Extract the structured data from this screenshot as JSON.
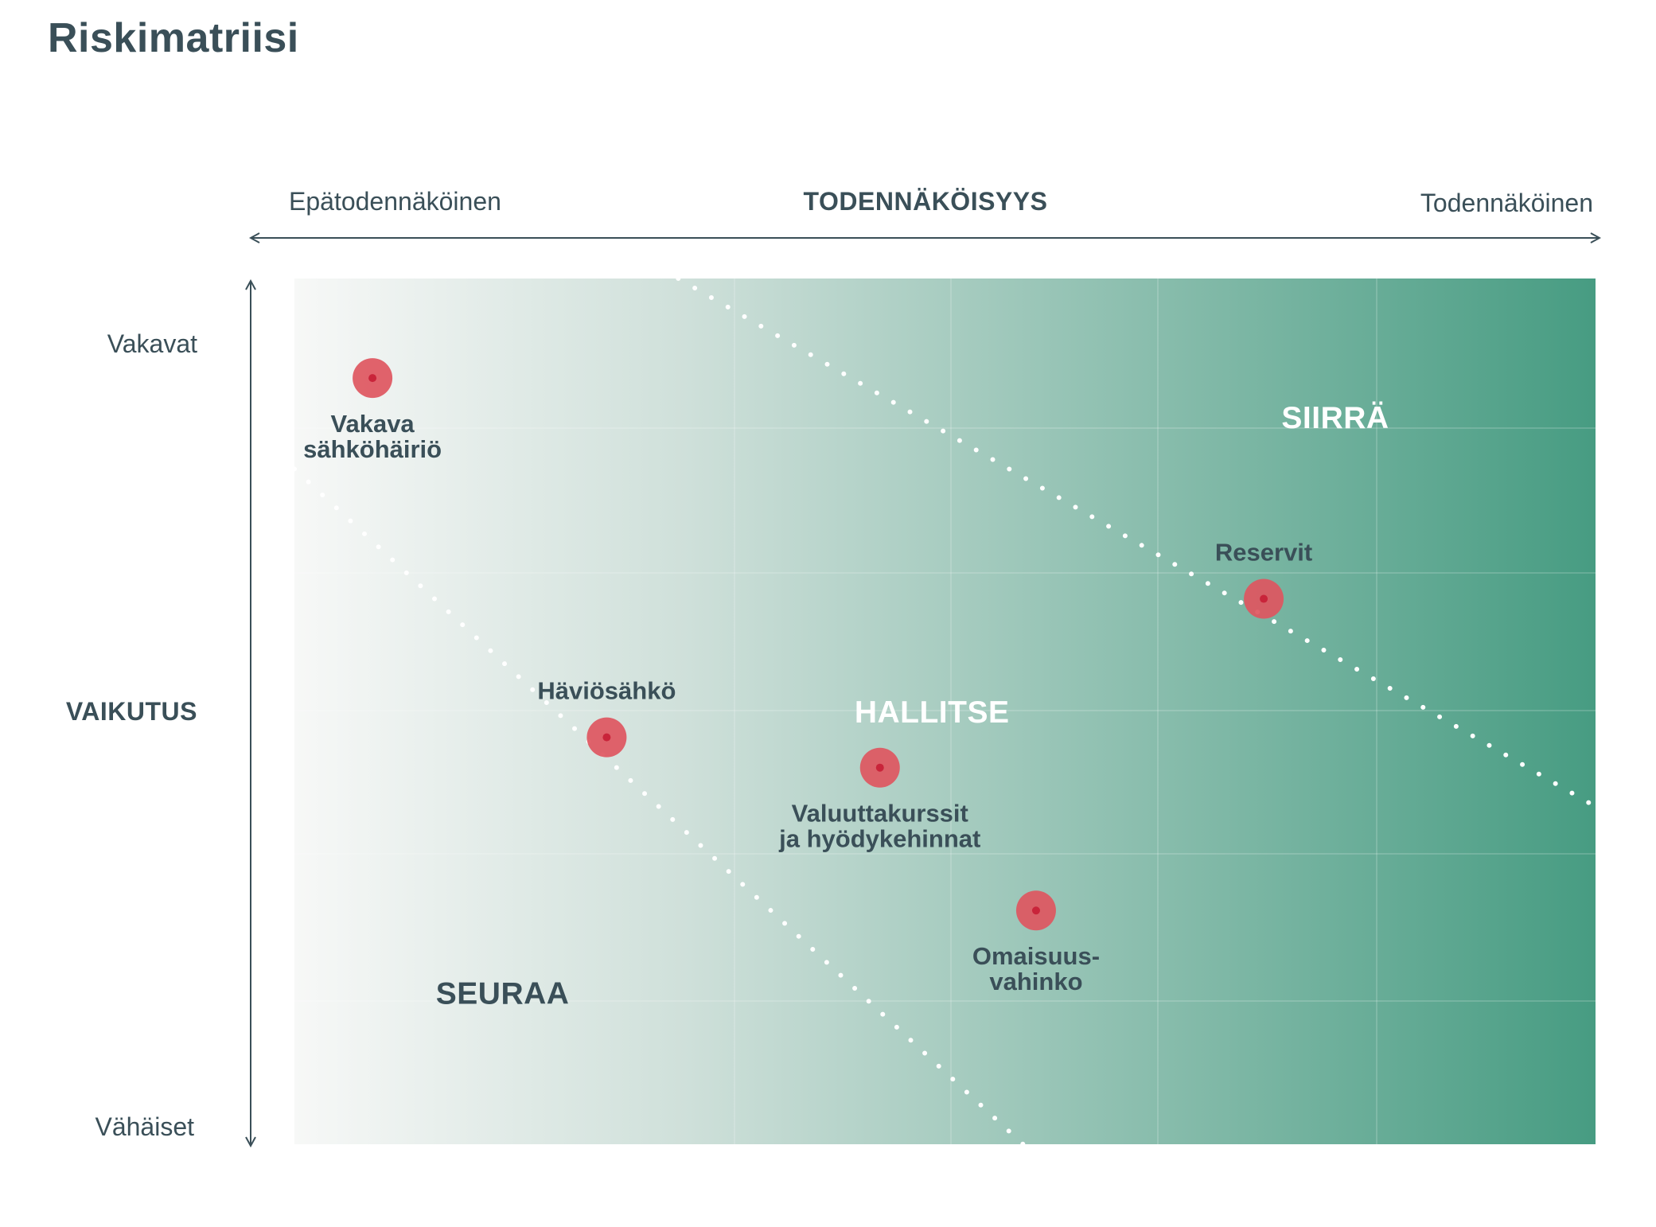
{
  "title": "Riskimatriisi",
  "colors": {
    "text": "#3a4f58",
    "gradient_start": "#f7f8f7",
    "gradient_mid": "#cfe0da",
    "gradient_end": "#479c82",
    "risk_fill": "#de5660",
    "risk_center": "#c9243a",
    "zone_label_light": "#ffffff",
    "zone_label_dark": "#3a4f58",
    "divider": "#ffffff"
  },
  "chart_data": {
    "type": "scatter",
    "title": "Riskimatriisi",
    "x_axis": {
      "title": "TODENNÄKÖISYYS",
      "min_label": "Epätodennäköinen",
      "max_label": "Todennäköinen",
      "range": [
        0,
        10
      ]
    },
    "y_axis": {
      "title": "VAIKUTUS",
      "min_label": "Vähäiset",
      "max_label": "Vakavat",
      "range": [
        0,
        10
      ]
    },
    "grid": true,
    "zones": [
      {
        "name": "SEURAA",
        "x": 1.6,
        "y": 1.75,
        "tone": "dark"
      },
      {
        "name": "HALLITSE",
        "x": 4.9,
        "y": 5.0,
        "tone": "light"
      },
      {
        "name": "SIIRRÄ",
        "x": 8.0,
        "y": 8.4,
        "tone": "light"
      }
    ],
    "dividers": [
      {
        "from": [
          0,
          7.8
        ],
        "to": [
          5.6,
          0
        ]
      },
      {
        "from": [
          2.95,
          10
        ],
        "to": [
          10,
          3.9
        ]
      }
    ],
    "points": [
      {
        "label": [
          "Vakava",
          "sähkö­häiriö"
        ],
        "x": 0.6,
        "y": 8.85,
        "label_position": "below"
      },
      {
        "label": [
          "Häviösähkö"
        ],
        "x": 2.4,
        "y": 4.7,
        "label_position": "above"
      },
      {
        "label": [
          "Valuuttakurssit",
          "ja hyödykehinnat"
        ],
        "x": 4.5,
        "y": 4.35,
        "label_position": "below"
      },
      {
        "label": [
          "Reservit"
        ],
        "x": 7.45,
        "y": 6.3,
        "label_position": "above"
      },
      {
        "label": [
          "Omaisuus-",
          "vahinko"
        ],
        "x": 5.7,
        "y": 2.7,
        "label_position": "below"
      }
    ]
  }
}
